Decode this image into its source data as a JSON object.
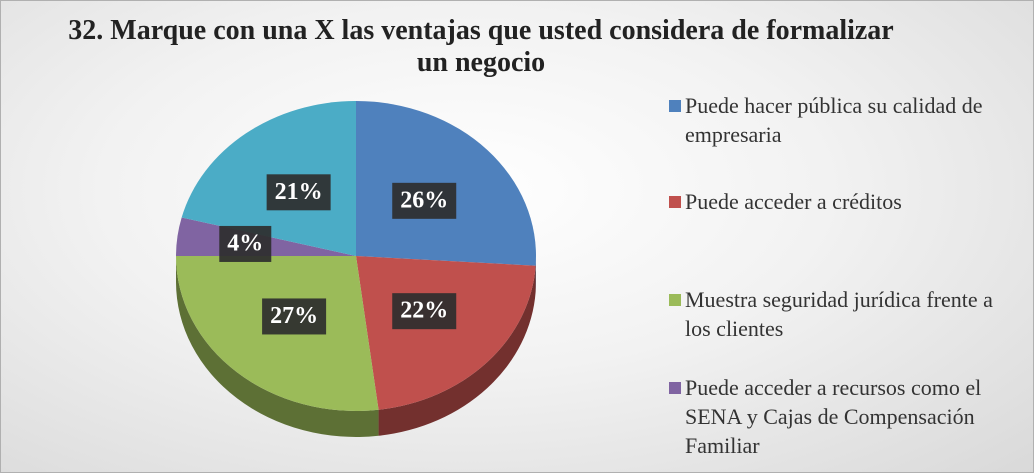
{
  "chart_data": {
    "type": "pie",
    "title": "32. Marque con una X las ventajas que usted considera de formalizar un negocio",
    "categories": [
      "Puede hacer pública su calidad de empresaria",
      "Puede acceder a créditos",
      "Muestra seguridad jurídica frente a los clientes",
      "Puede acceder a recursos como el SENA y Cajas de Compensación Familiar",
      null
    ],
    "values": [
      26,
      22,
      27,
      4,
      21
    ],
    "value_labels": [
      "26%",
      "22%",
      "27%",
      "4%",
      "21%"
    ],
    "colors": [
      "#4f81bd",
      "#c0504d",
      "#9bbb59",
      "#8064a2",
      "#4bacc6"
    ],
    "legend": "right"
  }
}
